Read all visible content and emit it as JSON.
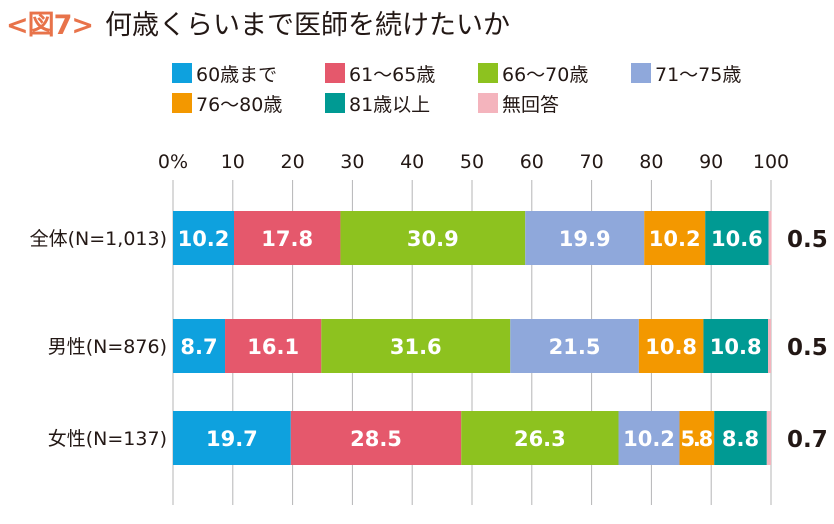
{
  "header": {
    "fig_no": "<図7>",
    "title": "何歳くらいまで医師を続けたいか"
  },
  "chart_data": {
    "type": "bar",
    "orientation": "horizontal",
    "stacked": true,
    "title": "何歳くらいまで医師を続けたいか",
    "xlim": [
      0,
      100
    ],
    "x_ticks": [
      "0%",
      "10",
      "20",
      "30",
      "40",
      "50",
      "60",
      "70",
      "80",
      "90",
      "100"
    ],
    "grid": true,
    "legend_position": "top",
    "categories": [
      "全体(N=1,013)",
      "男性(N=876)",
      "女性(N=137)"
    ],
    "series": [
      {
        "name": "60歳まで",
        "color": "#0ea1de",
        "values": [
          10.2,
          8.7,
          19.7
        ]
      },
      {
        "name": "61～65歳",
        "color": "#e5586c",
        "values": [
          17.8,
          16.1,
          28.5
        ]
      },
      {
        "name": "66～70歳",
        "color": "#8dc21f",
        "values": [
          30.9,
          31.6,
          26.3
        ]
      },
      {
        "name": "71～75歳",
        "color": "#8fa8db",
        "values": [
          19.9,
          21.5,
          10.2
        ]
      },
      {
        "name": "76～80歳",
        "color": "#f39800",
        "values": [
          10.2,
          10.8,
          5.8
        ]
      },
      {
        "name": "81歳以上",
        "color": "#009a93",
        "values": [
          10.6,
          10.8,
          8.8
        ]
      },
      {
        "name": "無回答",
        "color": "#f4b4bd",
        "values": [
          0.5,
          0.5,
          0.7
        ]
      }
    ],
    "segment_labels": [
      [
        "10.2",
        "17.8",
        "30.9",
        "19.9",
        "10.2",
        "10.6"
      ],
      [
        "8.7",
        "16.1",
        "31.6",
        "21.5",
        "10.8",
        "10.8"
      ],
      [
        "19.7",
        "28.5",
        "26.3",
        "10.2",
        "5.8",
        "8.8"
      ]
    ],
    "no_answer_labels": [
      "0.5",
      "0.5",
      "0.7"
    ]
  }
}
